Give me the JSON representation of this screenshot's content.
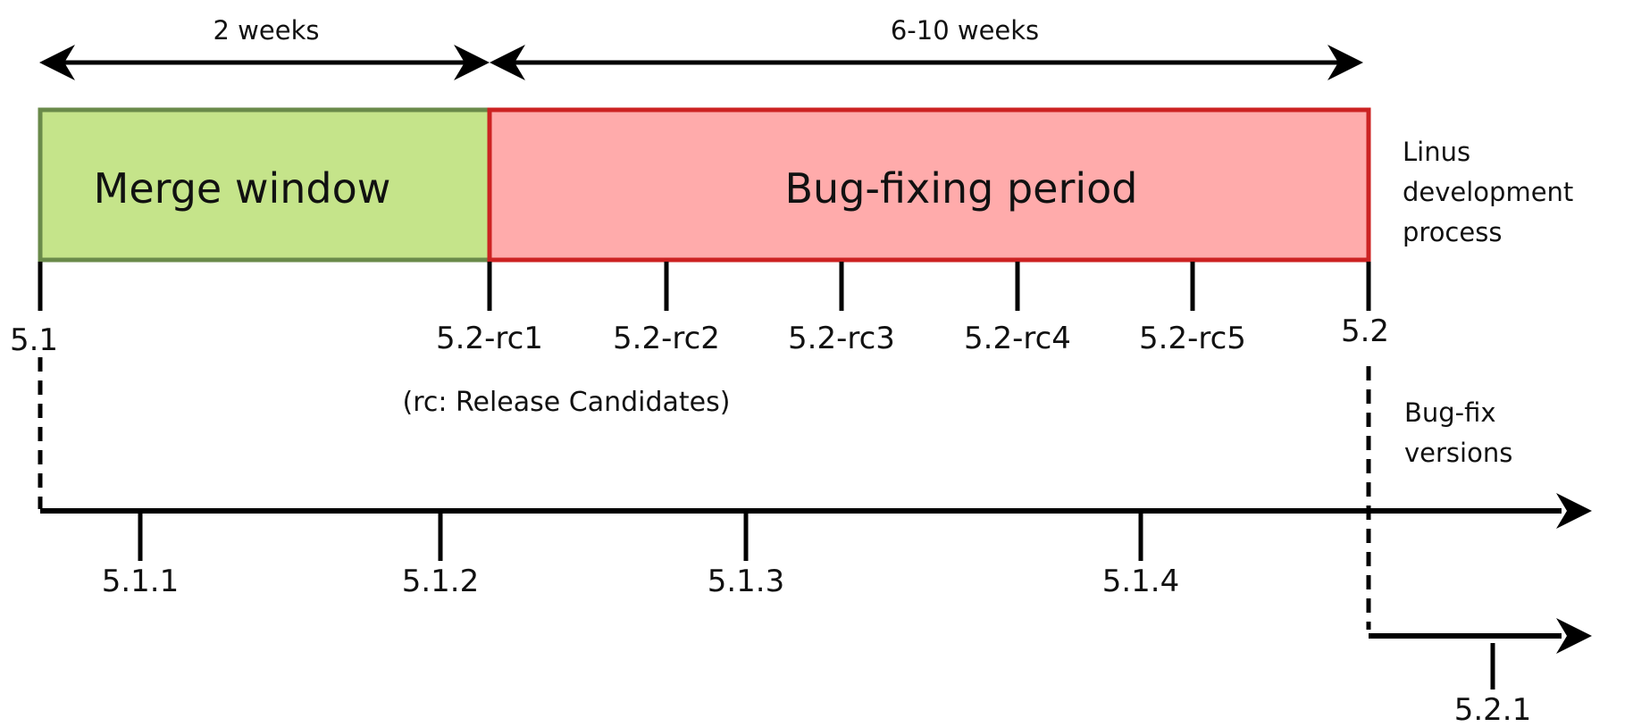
{
  "durations": {
    "merge": "2 weeks",
    "bugfix": "6-10 weeks"
  },
  "phases": {
    "merge_window": {
      "label": "Merge window",
      "fill": "#c5e48a",
      "stroke": "#6a8a4a"
    },
    "bugfix_period": {
      "label": "Bug-fixing period",
      "fill": "#ffabab",
      "stroke": "#cc2222"
    }
  },
  "side_labels": {
    "linus": [
      "Linus",
      "development",
      "process"
    ],
    "bugfix_versions": [
      "Bug-fix",
      "versions"
    ]
  },
  "releases": {
    "v51": "5.1",
    "rc": [
      "5.2-rc1",
      "5.2-rc2",
      "5.2-rc3",
      "5.2-rc4",
      "5.2-rc5"
    ],
    "v52": "5.2"
  },
  "rc_note": "(rc: Release Candidates)",
  "stable_51": [
    "5.1.1",
    "5.1.2",
    "5.1.3",
    "5.1.4"
  ],
  "stable_52": [
    "5.2.1"
  ]
}
